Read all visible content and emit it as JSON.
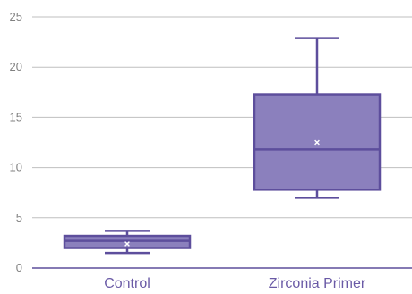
{
  "chart_data": {
    "type": "box",
    "categories": [
      "Control",
      "Zirconia Primer"
    ],
    "series": [
      {
        "category": "Control",
        "min": 1.5,
        "q1": 2.0,
        "median": 2.7,
        "q3": 3.2,
        "max": 3.7,
        "mean": 2.4
      },
      {
        "category": "Zirconia Primer",
        "min": 7.0,
        "q1": 7.8,
        "median": 11.8,
        "q3": 17.3,
        "max": 22.9,
        "mean": 12.5
      }
    ],
    "y_ticks": [
      "0",
      "5",
      "10",
      "15",
      "20",
      "25"
    ],
    "ylim": [
      0,
      25
    ],
    "grid": true,
    "colors": {
      "box_fill": "#8b80bd",
      "box_stroke": "#5d4e9c",
      "grid": "#bfbfbf",
      "axis": "#5d4e9c",
      "mean_marker": "#ffffff"
    }
  }
}
